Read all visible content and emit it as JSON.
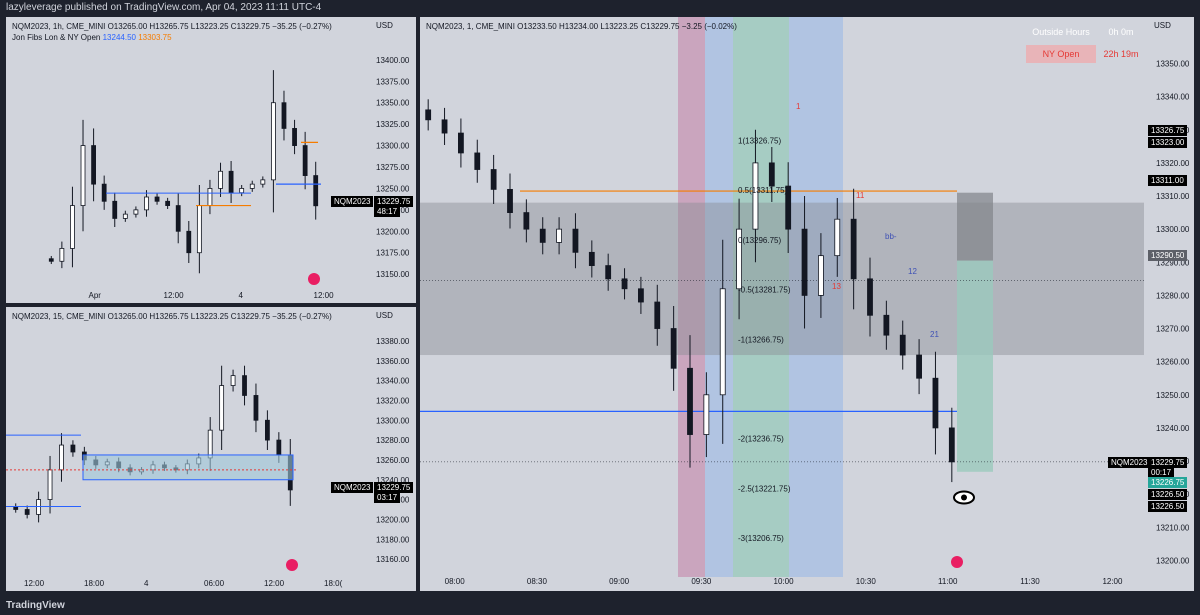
{
  "header": "lazyleverage published on TradingView.com, Apr 04, 2023 11:11 UTC-4",
  "footer": "TradingView",
  "colors": {
    "pane_bg": "#d1d4dc",
    "up": "#131722",
    "down": "#131722",
    "orange_line": "#f57c00",
    "blue_line": "#2962ff",
    "red_zone": "#c792b0",
    "blue_zone": "#a9bfe3",
    "green_zone": "#9bc9bd",
    "gray_box": "#a0a3ab"
  },
  "panes": {
    "tl": {
      "title": "NQM2023, 1h, CME_MINI  O13265.00  H13265.75  L13223.25  C13229.75  −35.25 (−0.27%)",
      "indicator": "Jon Fibs Lon & NY Open",
      "ind_val1": "13244.50",
      "ind_val2": "13303.75",
      "currency": "USD",
      "price_ticks": [
        "13400.00",
        "13375.00",
        "13350.00",
        "13325.00",
        "13300.00",
        "13275.00",
        "13250.00",
        "13225.00",
        "13200.00",
        "13175.00",
        "13150.00"
      ],
      "time_ticks": [
        "Apr",
        "12:00",
        "4",
        "12:00"
      ],
      "tag_symbol": "NQM2023",
      "tag_price": "13229.75",
      "tag_timer": "48:17"
    },
    "bl": {
      "title": "NQM2023, 15, CME_MINI  O13265.00  H13265.75  L13223.25  C13229.75  −35.25 (−0.27%)",
      "currency": "USD",
      "price_ticks": [
        "13380.00",
        "13360.00",
        "13340.00",
        "13320.00",
        "13300.00",
        "13280.00",
        "13260.00",
        "13240.00",
        "13220.00",
        "13200.00",
        "13180.00",
        "13160.00"
      ],
      "time_ticks": [
        "12:00",
        "18:00",
        "4",
        "06:00",
        "12:00",
        "18:0("
      ],
      "tag_symbol": "NQM2023",
      "tag_price": "13229.75",
      "tag_timer": "03:17"
    },
    "main": {
      "title": "NQM2023, 1, CME_MINI  O13233.50  H13234.00  L13223.25  C13229.75  −3.25 (−0.02%)",
      "currency": "USD",
      "price_ticks": [
        "13350.00",
        "13340.00",
        "13330.00",
        "13320.00",
        "13310.00",
        "13300.00",
        "13290.00",
        "13280.00",
        "13270.00",
        "13260.00",
        "13250.00",
        "13240.00",
        "13230.00",
        "13220.00",
        "13210.00",
        "13200.00"
      ],
      "time_ticks": [
        "08:00",
        "08:30",
        "09:00",
        "09:30",
        "10:00",
        "10:30",
        "11:00",
        "11:30",
        "12:00"
      ],
      "session_label": "Outside Hours",
      "session_time": "0h 0m",
      "ny_label": "NY Open",
      "ny_time": "22h 19m",
      "fib_labels": [
        "1(13326.75)",
        "0.5(13311.75)",
        "0(13296.75)",
        "-0.5(13281.75)",
        "-1(13266.75)",
        "-2(13236.75)",
        "-2.5(13221.75)",
        "-3(13206.75)"
      ],
      "right_tags": [
        "13326.75",
        "13323.00",
        "13311.00",
        "13290.50",
        "13226.75",
        "13226.50",
        "13226.50"
      ],
      "tag_symbol": "NQM2023",
      "tag_price": "13229.75",
      "tag_timer": "00:17",
      "annotations": [
        "1",
        "11",
        "12",
        "13",
        "21",
        "bb-"
      ]
    }
  },
  "chart_data": [
    {
      "type": "candlestick",
      "title": "NQM2023, 1h, CME_MINI",
      "ylim": [
        13135,
        13415
      ],
      "close": [
        13165,
        13180,
        13230,
        13300,
        13255,
        13235,
        13215,
        13220,
        13225,
        13240,
        13235,
        13230,
        13200,
        13175,
        13230,
        13250,
        13270,
        13245,
        13250,
        13255,
        13260,
        13350,
        13320,
        13300,
        13265,
        13229.75
      ]
    },
    {
      "type": "candlestick",
      "title": "NQM2023, 15, CME_MINI",
      "ylim": [
        13150,
        13390
      ],
      "close": [
        13210,
        13205,
        13220,
        13250,
        13275,
        13268,
        13260,
        13255,
        13258,
        13252,
        13248,
        13250,
        13255,
        13252,
        13250,
        13256,
        13262,
        13290,
        13335,
        13345,
        13325,
        13300,
        13280,
        13265,
        13229.75
      ]
    },
    {
      "type": "candlestick",
      "title": "NQM2023, 1, CME_MINI",
      "ylim": [
        13195,
        13358
      ],
      "close": [
        13333,
        13329,
        13323,
        13318,
        13312,
        13305,
        13300,
        13296,
        13300,
        13293,
        13289,
        13285,
        13282,
        13278,
        13270,
        13258,
        13238,
        13250,
        13282,
        13300,
        13320,
        13313,
        13300,
        13280,
        13292,
        13303,
        13285,
        13274,
        13268,
        13262,
        13255,
        13240,
        13229.75
      ]
    }
  ]
}
